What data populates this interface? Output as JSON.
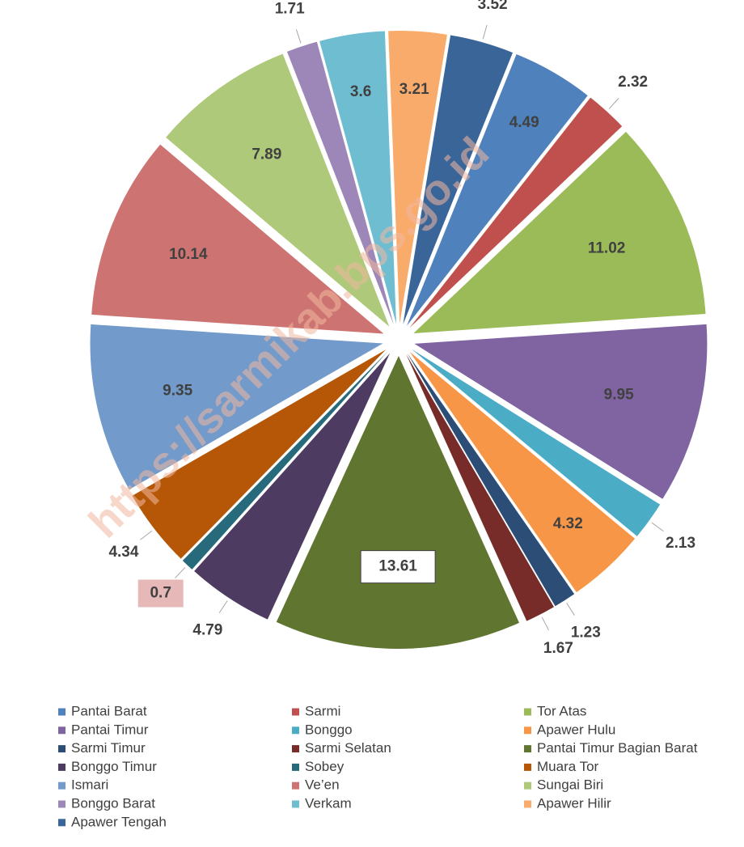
{
  "chart_data": {
    "type": "pie",
    "categories": [
      "Pantai Barat",
      "Sarmi",
      "Tor Atas",
      "Pantai Timur",
      "Bonggo",
      "Apawer Hulu",
      "Sarmi Timur",
      "Sarmi Selatan",
      "Pantai Timur Bagian Barat",
      "Bonggo Timur",
      "Sobey",
      "Muara Tor",
      "Ismari",
      "Ve’en",
      "Sungai Biri",
      "Bonggo Barat",
      "Verkam",
      "Apawer Hilir",
      "Apawer Tengah"
    ],
    "values": [
      4.49,
      2.32,
      11.02,
      9.95,
      2.13,
      4.32,
      1.23,
      1.67,
      13.61,
      4.79,
      0.7,
      4.34,
      9.35,
      10.14,
      7.89,
      1.71,
      3.6,
      3.21,
      3.52
    ],
    "colors": [
      "#4f81bd",
      "#c0504d",
      "#9bbb59",
      "#8064a2",
      "#4bacc6",
      "#f79646",
      "#2c4d75",
      "#772c2a",
      "#5f7530",
      "#4d3b62",
      "#276a7c",
      "#b65708",
      "#729aca",
      "#cd7371",
      "#afc97a",
      "#9d87b8",
      "#6fbdd1",
      "#f9ab6b",
      "#3a6598"
    ],
    "legend": "bottom",
    "watermark": "https://sarmikab.bps.go.id"
  }
}
